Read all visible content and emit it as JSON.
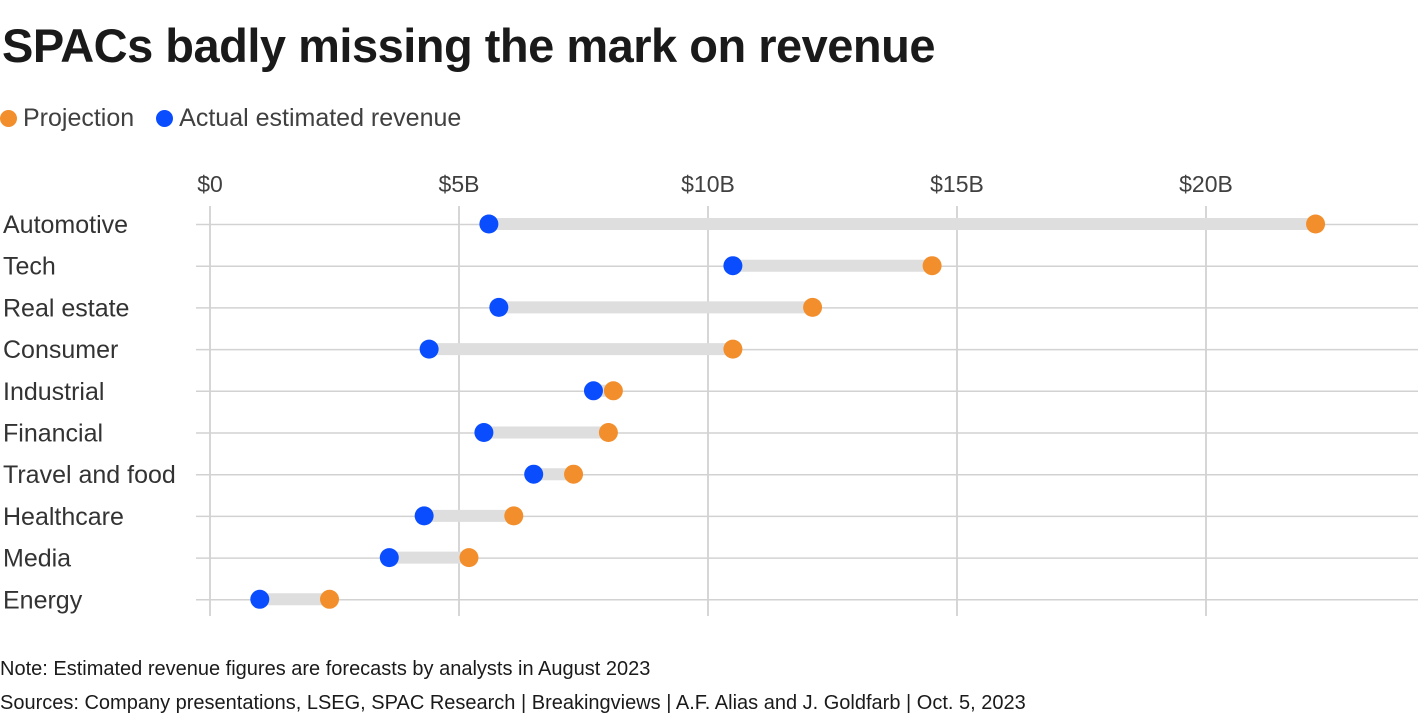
{
  "title": "SPACs badly missing the mark on revenue",
  "legend": [
    {
      "label": "Projection",
      "color": "#f28e2b"
    },
    {
      "label": "Actual estimated revenue",
      "color": "#0a4dff"
    }
  ],
  "note": "Note: Estimated revenue figures are forecasts by analysts in August 2023",
  "sources": "Sources: Company presentations, LSEG, SPAC Research | Breakingviews | A.F. Alias and J. Goldfarb | Oct. 5, 2023",
  "chart_data": {
    "type": "dumbbell",
    "title": "SPACs badly missing the mark on revenue",
    "xlabel": "",
    "ylabel": "",
    "xlim": [
      0,
      24
    ],
    "xticks": [
      0,
      5,
      10,
      15,
      20
    ],
    "xtick_labels": [
      "$0",
      "$5B",
      "$10B",
      "$15B",
      "$20B"
    ],
    "grid": true,
    "legend_position": "top-left",
    "categories": [
      "Automotive",
      "Tech",
      "Real estate",
      "Consumer",
      "Industrial",
      "Financial",
      "Travel and food",
      "Healthcare",
      "Media",
      "Energy"
    ],
    "series": [
      {
        "name": "Projection",
        "color": "#f28e2b",
        "values": [
          22.2,
          14.5,
          12.1,
          10.5,
          8.1,
          8.0,
          7.3,
          6.1,
          5.2,
          2.4
        ]
      },
      {
        "name": "Actual estimated revenue",
        "color": "#0a4dff",
        "values": [
          5.6,
          10.5,
          5.8,
          4.4,
          7.7,
          5.5,
          6.5,
          4.3,
          3.6,
          1.0
        ]
      }
    ]
  }
}
